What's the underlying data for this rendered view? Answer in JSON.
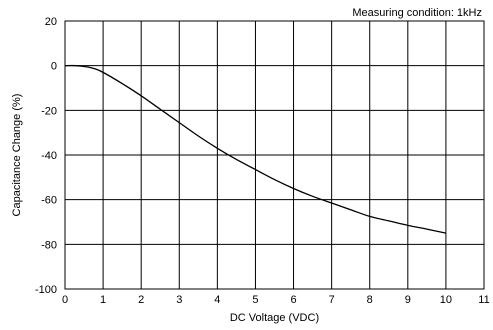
{
  "chart_data": {
    "type": "line",
    "title": "",
    "annotation": "Measuring condition: 1kHz",
    "xlabel": "DC Voltage (VDC)",
    "ylabel": "Capacitance Change (%)",
    "xlim": [
      0,
      11
    ],
    "ylim": [
      -100,
      20
    ],
    "xticks": [
      0,
      1,
      2,
      3,
      4,
      5,
      6,
      7,
      8,
      9,
      10,
      11
    ],
    "yticks": [
      20,
      0,
      -20,
      -40,
      -60,
      -80,
      -100
    ],
    "xtick_labels": [
      "0",
      "1",
      "2",
      "3",
      "4",
      "5",
      "6",
      "7",
      "8",
      "9",
      "10",
      "11"
    ],
    "ytick_labels": [
      "20",
      "0",
      "-20",
      "-40",
      "-60",
      "-80",
      "-100"
    ],
    "grid": true,
    "series": [
      {
        "x": [
          0,
          0.3,
          0.6,
          0.8,
          1.0,
          1.5,
          2.0,
          2.5,
          3.0,
          3.5,
          4.0,
          4.5,
          5.0,
          5.5,
          6.0,
          6.5,
          7.0,
          7.5,
          8.0,
          8.5,
          9.0,
          9.5,
          10.0
        ],
        "y": [
          0,
          0,
          -0.6,
          -1.5,
          -3,
          -8,
          -13.5,
          -19.5,
          -25.5,
          -31.5,
          -37,
          -42,
          -46.5,
          -51,
          -55,
          -58.5,
          -61.5,
          -64.5,
          -67.5,
          -69.5,
          -71.5,
          -73.2,
          -75
        ]
      }
    ]
  }
}
